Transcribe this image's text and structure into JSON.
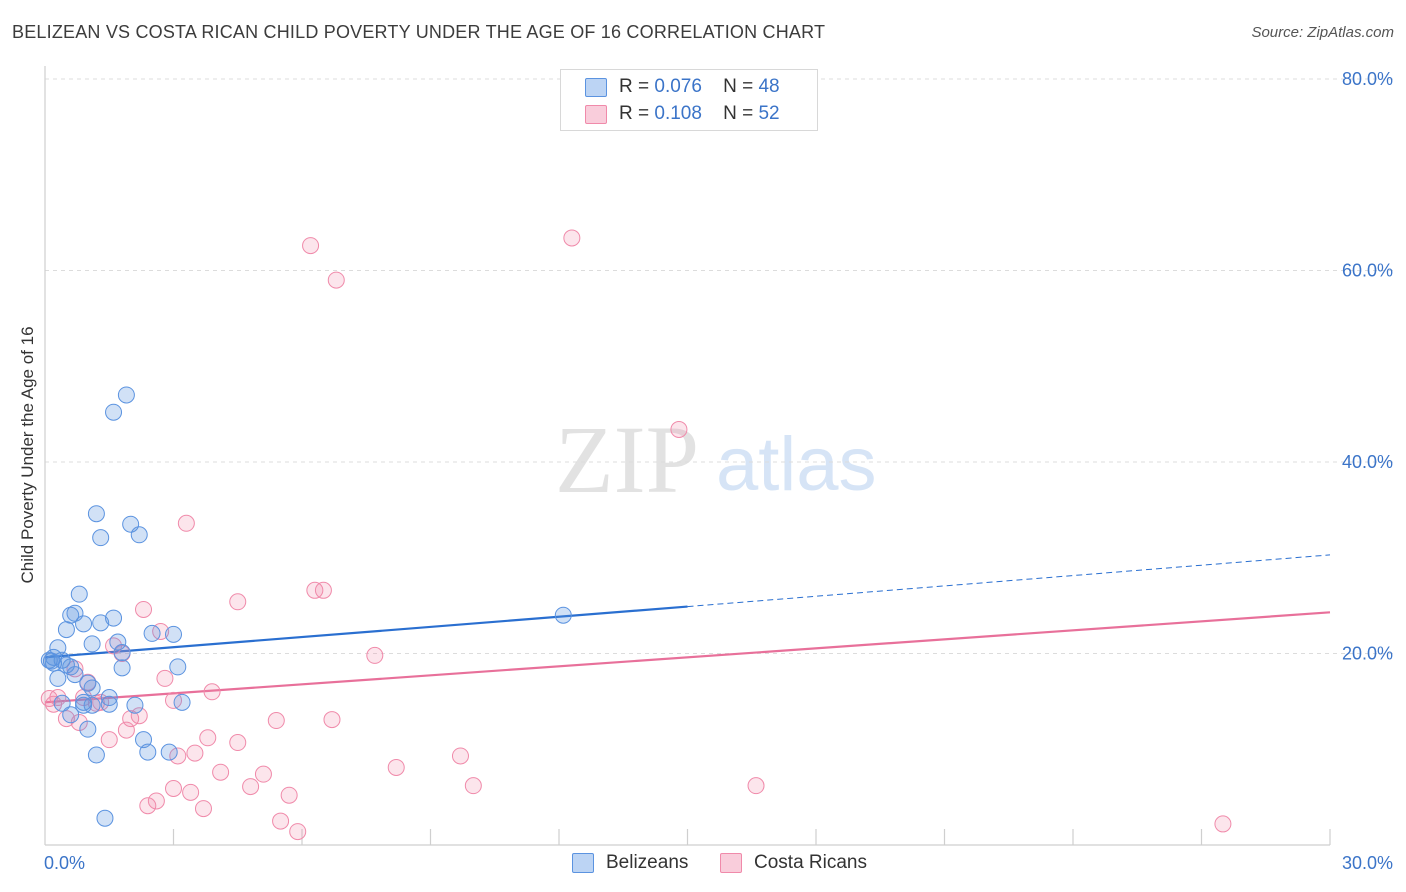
{
  "title": "BELIZEAN VS COSTA RICAN CHILD POVERTY UNDER THE AGE OF 16 CORRELATION CHART",
  "source": "Source: ZipAtlas.com",
  "watermark": {
    "zip": "ZIP",
    "atlas": "atlas"
  },
  "legend_top": [
    {
      "r_label": "R =",
      "r_value": "0.076",
      "n_label": "N =",
      "n_value": "48"
    },
    {
      "r_label": "R =",
      "r_value": "0.108",
      "n_label": "N =",
      "n_value": "52"
    }
  ],
  "legend_bottom": [
    "Belizeans",
    "Costa Ricans"
  ],
  "chart_data": {
    "type": "scatter",
    "title": "BELIZEAN VS COSTA RICAN CHILD POVERTY UNDER THE AGE OF 16 CORRELATION CHART",
    "xlabel": "",
    "ylabel": "Child Poverty Under the Age of 16",
    "xlim": [
      0,
      30
    ],
    "ylim": [
      0,
      80
    ],
    "x_tick_labels": [
      "0.0%",
      "30.0%"
    ],
    "y_ticks": [
      20,
      40,
      60,
      80
    ],
    "y_tick_labels": [
      "20.0%",
      "40.0%",
      "60.0%",
      "80.0%"
    ],
    "grid": true,
    "colors": {
      "belizeans": "#5b93e0",
      "costa_ricans": "#f08aaa",
      "blue_line": "#2a6fd0",
      "pink_line": "#e8709a",
      "axis_text": "#3b74c8"
    },
    "series": [
      {
        "name": "Belizeans",
        "r": 0.076,
        "n": 48,
        "points": [
          [
            0.2,
            19.6
          ],
          [
            0.2,
            19.0
          ],
          [
            0.3,
            20.6
          ],
          [
            0.3,
            17.4
          ],
          [
            0.4,
            19.3
          ],
          [
            0.4,
            14.8
          ],
          [
            0.5,
            22.5
          ],
          [
            0.5,
            18.8
          ],
          [
            0.6,
            24.0
          ],
          [
            0.6,
            13.6
          ],
          [
            0.6,
            18.6
          ],
          [
            0.7,
            17.8
          ],
          [
            0.7,
            24.2
          ],
          [
            0.8,
            26.2
          ],
          [
            0.9,
            14.6
          ],
          [
            0.9,
            14.9
          ],
          [
            0.9,
            23.1
          ],
          [
            1.0,
            12.1
          ],
          [
            1.0,
            16.9
          ],
          [
            1.1,
            16.4
          ],
          [
            1.1,
            14.6
          ],
          [
            1.1,
            21.0
          ],
          [
            1.2,
            34.6
          ],
          [
            1.2,
            9.4
          ],
          [
            1.3,
            32.1
          ],
          [
            1.3,
            23.2
          ],
          [
            1.4,
            2.8
          ],
          [
            1.5,
            15.4
          ],
          [
            1.5,
            14.7
          ],
          [
            1.6,
            23.7
          ],
          [
            1.6,
            45.2
          ],
          [
            1.7,
            21.2
          ],
          [
            1.8,
            18.5
          ],
          [
            1.9,
            47.0
          ],
          [
            1.8,
            20.1
          ],
          [
            2.0,
            33.5
          ],
          [
            2.1,
            14.6
          ],
          [
            2.2,
            32.4
          ],
          [
            2.3,
            11.0
          ],
          [
            2.4,
            9.7
          ],
          [
            2.5,
            22.1
          ],
          [
            2.9,
            9.7
          ],
          [
            3.0,
            22.0
          ],
          [
            3.1,
            18.6
          ],
          [
            3.2,
            14.9
          ],
          [
            12.1,
            24.0
          ],
          [
            0.1,
            19.3
          ],
          [
            0.15,
            19.2
          ]
        ]
      },
      {
        "name": "Costa Ricans",
        "r": 0.108,
        "n": 52,
        "points": [
          [
            0.1,
            15.3
          ],
          [
            0.3,
            15.4
          ],
          [
            0.5,
            13.2
          ],
          [
            0.7,
            18.4
          ],
          [
            0.8,
            12.8
          ],
          [
            0.9,
            15.4
          ],
          [
            1.0,
            17.0
          ],
          [
            1.2,
            14.8
          ],
          [
            1.5,
            11.0
          ],
          [
            1.6,
            20.8
          ],
          [
            1.8,
            20.0
          ],
          [
            1.9,
            12.0
          ],
          [
            2.0,
            13.2
          ],
          [
            2.2,
            13.5
          ],
          [
            2.3,
            24.6
          ],
          [
            2.4,
            4.1
          ],
          [
            2.6,
            4.6
          ],
          [
            2.7,
            22.3
          ],
          [
            2.8,
            17.4
          ],
          [
            3.0,
            15.1
          ],
          [
            3.0,
            5.9
          ],
          [
            3.1,
            9.3
          ],
          [
            3.3,
            33.6
          ],
          [
            3.4,
            5.5
          ],
          [
            3.5,
            9.6
          ],
          [
            3.7,
            3.8
          ],
          [
            3.8,
            11.2
          ],
          [
            3.9,
            16.0
          ],
          [
            4.1,
            7.6
          ],
          [
            4.5,
            25.4
          ],
          [
            4.5,
            10.7
          ],
          [
            4.8,
            6.1
          ],
          [
            5.1,
            7.4
          ],
          [
            5.4,
            13.0
          ],
          [
            5.5,
            2.5
          ],
          [
            5.7,
            5.2
          ],
          [
            5.9,
            1.4
          ],
          [
            6.2,
            62.6
          ],
          [
            6.3,
            26.6
          ],
          [
            6.5,
            26.6
          ],
          [
            6.7,
            13.1
          ],
          [
            6.8,
            59.0
          ],
          [
            7.7,
            19.8
          ],
          [
            8.2,
            8.1
          ],
          [
            9.7,
            9.3
          ],
          [
            10.0,
            6.2
          ],
          [
            12.3,
            63.4
          ],
          [
            14.8,
            43.4
          ],
          [
            16.6,
            6.2
          ],
          [
            27.5,
            2.2
          ],
          [
            0.2,
            14.7
          ],
          [
            1.3,
            14.9
          ]
        ]
      }
    ],
    "trendlines": [
      {
        "series": "Belizeans",
        "x1": 0,
        "y1": 19.6,
        "x2": 15.0,
        "y2": 24.9,
        "dashed_to_x": 30,
        "dashed_to_y": 30.3
      },
      {
        "series": "Costa Ricans",
        "x1": 0,
        "y1": 14.9,
        "x2": 30,
        "y2": 24.3
      }
    ]
  }
}
